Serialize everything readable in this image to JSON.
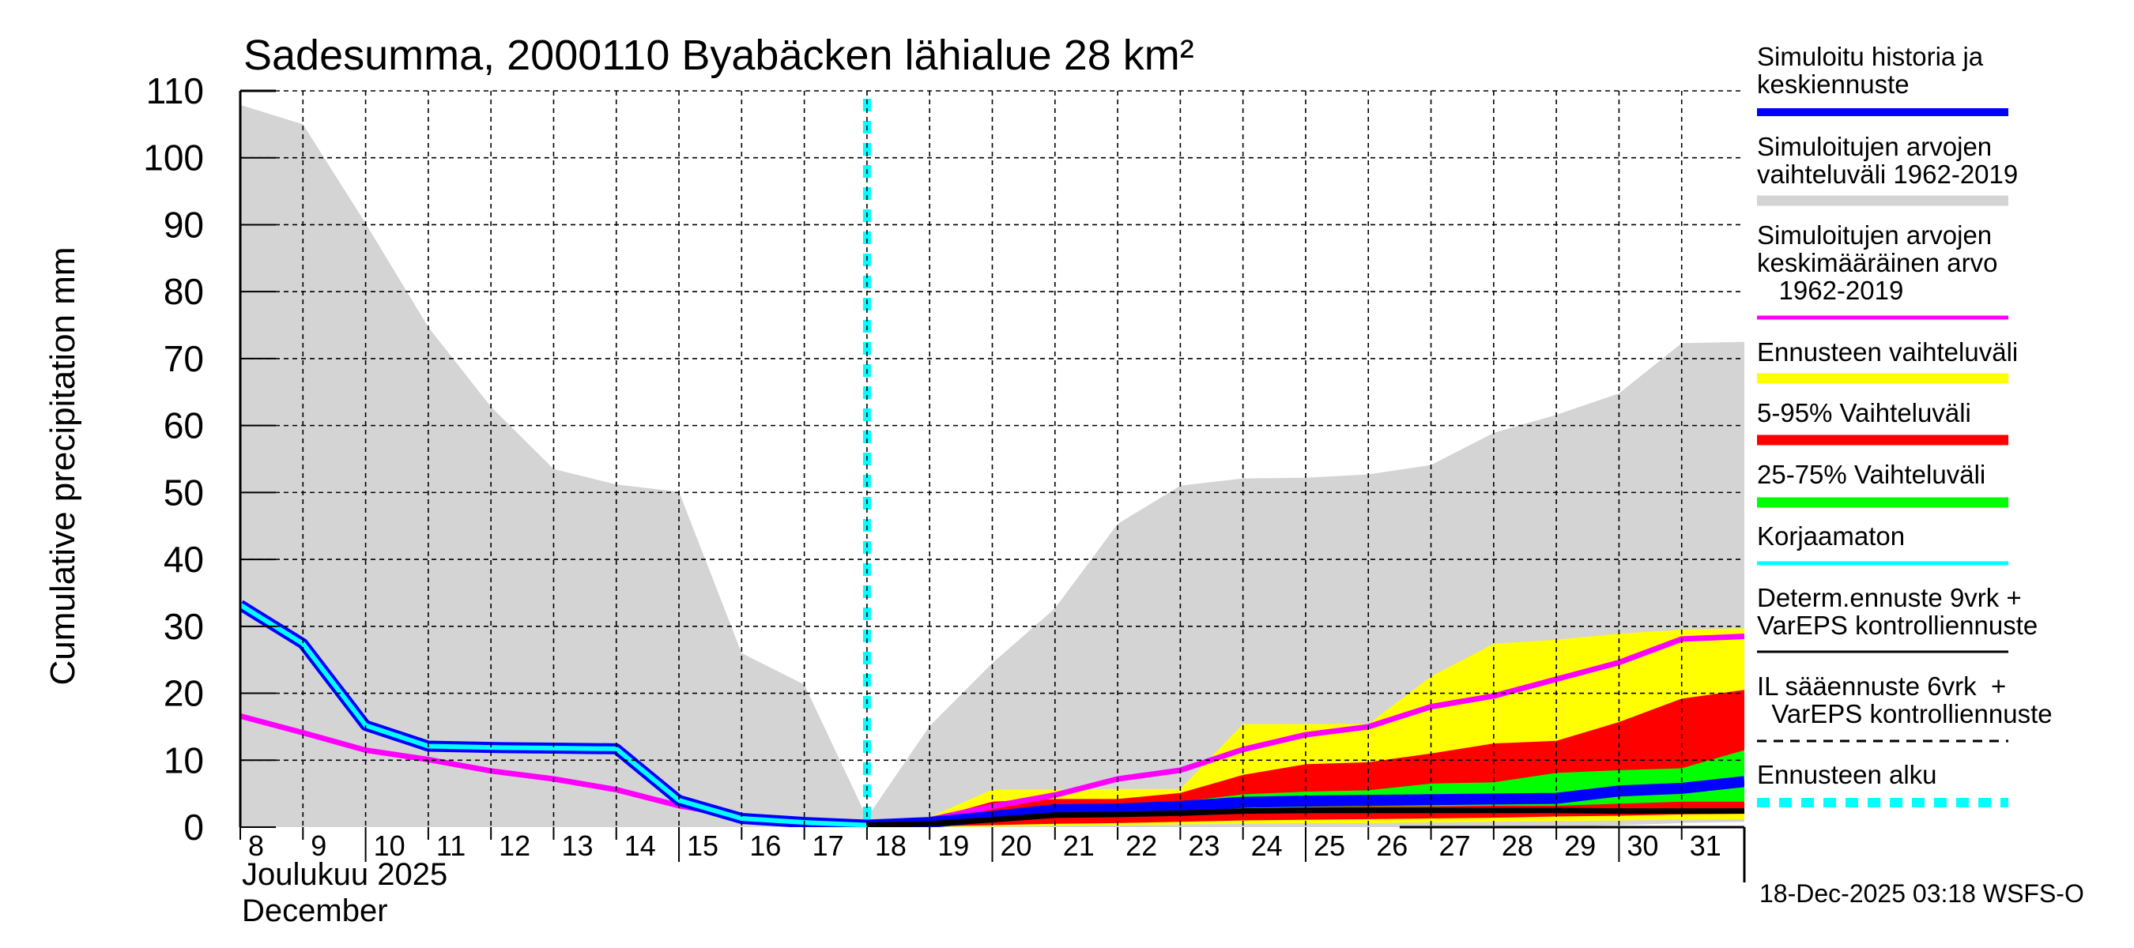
{
  "chart_data": {
    "type": "area",
    "title": "Sadesumma, 2000110 Byabäcken  lähialue 28 km²",
    "ylabel": "Cumulative precipitation   mm",
    "xlabel_lines": [
      "Joulukuu  2025",
      "December"
    ],
    "ylim": [
      0,
      110
    ],
    "yticks": [
      0,
      10,
      20,
      30,
      40,
      50,
      60,
      70,
      80,
      90,
      100,
      110
    ],
    "xlim_days": [
      8,
      32
    ],
    "xtick_days": [
      8,
      9,
      10,
      11,
      12,
      13,
      14,
      15,
      16,
      17,
      18,
      19,
      20,
      21,
      22,
      23,
      24,
      25,
      26,
      27,
      28,
      29,
      30,
      31
    ],
    "xtick_labels": [
      "8",
      "9",
      "10",
      "11",
      "12",
      "13",
      "14",
      "15",
      "16",
      "17",
      "18",
      "19",
      "20",
      "21",
      "22",
      "23",
      "24",
      "25",
      "26",
      "27",
      "28",
      "29",
      "30",
      "31"
    ],
    "grid": true,
    "forecast_start_day": 18,
    "timestamp": "18-Dec-2025 03:18 WSFS-O",
    "colors": {
      "history_range": "#d4d4d4",
      "history_mean": "#ff00ff",
      "simulated": "#0000ff",
      "uncorrected": "#00ffff",
      "forecast_range": "#ffff00",
      "range_5_95": "#ff0000",
      "range_25_75": "#00ff00",
      "deterministic": "#000000",
      "forecast_start": "#00ffff"
    },
    "series": {
      "history_range": {
        "name": "Simuloitujen arvojen vaihteluväli 1962-2019",
        "x": [
          8,
          9,
          10,
          11,
          12,
          13,
          14,
          15,
          16,
          17,
          18,
          19,
          20,
          21,
          22,
          23,
          24,
          25,
          26,
          27,
          28,
          29,
          30,
          31,
          32
        ],
        "upper": [
          107.9,
          105,
          90.2,
          74.7,
          62.8,
          53.5,
          51.2,
          50.1,
          26,
          21.3,
          1.4,
          15.1,
          24.5,
          32.7,
          45.3,
          51,
          52.1,
          52.2,
          52.7,
          54.1,
          58.9,
          61.6,
          64.8,
          72.3,
          72.5
        ],
        "lower": [
          0,
          0,
          0,
          0,
          0,
          0,
          0,
          0,
          0,
          0,
          0,
          0,
          0,
          0,
          0,
          0,
          0,
          0,
          0,
          0,
          0,
          0,
          0.3,
          0.6,
          0.8
        ]
      },
      "forecast_range": {
        "name": "Ennusteen vaihteluväli",
        "x": [
          18,
          19,
          20,
          21,
          22,
          23,
          24,
          25,
          26,
          27,
          28,
          29,
          30,
          31,
          32
        ],
        "upper": [
          0.2,
          1.5,
          5.6,
          5.6,
          5.7,
          5.7,
          15.4,
          15.4,
          15.4,
          22.5,
          27.4,
          28.0,
          28.9,
          29.5,
          29.7
        ],
        "lower": [
          0,
          0,
          0.1,
          0.2,
          0.3,
          0.4,
          0.5,
          0.6,
          0.6,
          0.7,
          0.8,
          0.9,
          1.0,
          1.1,
          1.2
        ]
      },
      "range_5_95": {
        "name": "5-95% Vaihteluväli",
        "x": [
          18,
          19,
          20,
          21,
          22,
          23,
          24,
          25,
          26,
          27,
          28,
          29,
          30,
          31,
          32
        ],
        "upper": [
          0.2,
          1.2,
          3.8,
          4.2,
          4.2,
          5.1,
          7.8,
          9.4,
          9.7,
          11.0,
          12.5,
          12.9,
          15.7,
          19.2,
          20.5
        ],
        "lower": [
          0,
          0.1,
          0.3,
          0.5,
          0.6,
          0.8,
          1.0,
          1.1,
          1.2,
          1.3,
          1.4,
          1.6,
          1.7,
          1.9,
          2.0
        ]
      },
      "range_25_75": {
        "name": "25-75% Vaihteluväli",
        "x": [
          18,
          19,
          20,
          21,
          22,
          23,
          24,
          25,
          26,
          27,
          28,
          29,
          30,
          31,
          32
        ],
        "upper": [
          0.1,
          0.9,
          2.3,
          3.2,
          3.3,
          3.8,
          4.9,
          5.3,
          5.5,
          6.5,
          6.7,
          8.1,
          8.5,
          8.8,
          11.5
        ],
        "lower": [
          0,
          0.4,
          1.2,
          1.8,
          2.0,
          2.3,
          2.8,
          3.0,
          3.1,
          3.1,
          3.2,
          3.2,
          3.5,
          3.8,
          3.8
        ]
      },
      "simulated": {
        "name": "Simuloitu historia ja keskiennuste",
        "x": [
          8,
          9,
          10,
          11,
          12,
          13,
          14,
          15,
          16,
          17,
          18,
          19,
          20,
          21,
          22,
          23,
          24,
          25,
          26,
          27,
          28,
          29,
          30,
          31,
          32
        ],
        "values": [
          33.2,
          27.4,
          15.2,
          12.1,
          11.9,
          11.8,
          11.7,
          4.0,
          1.3,
          0.7,
          0.3,
          0.7,
          1.6,
          2.6,
          2.7,
          3.1,
          3.7,
          3.9,
          4.0,
          4.1,
          4.2,
          4.3,
          5.4,
          5.8,
          6.8
        ]
      },
      "uncorrected": {
        "name": "Korjaamaton",
        "x": [
          8,
          9,
          10,
          11,
          12,
          13,
          14,
          15,
          16,
          17,
          18
        ],
        "values": [
          33.2,
          27.4,
          15.2,
          12.1,
          11.9,
          11.8,
          11.7,
          4.0,
          1.3,
          0.7,
          0.3
        ]
      },
      "history_mean": {
        "name": "Simuloitujen arvojen keskimääräinen arvo 1962-2019",
        "x": [
          8,
          9,
          10,
          11,
          12,
          13,
          14,
          15,
          16,
          17,
          18,
          19,
          20,
          21,
          22,
          23,
          24,
          25,
          26,
          27,
          28,
          29,
          30,
          31,
          32
        ],
        "values": [
          16.6,
          14.1,
          11.5,
          10.1,
          8.4,
          7.2,
          5.6,
          3.2,
          1.6,
          0.7,
          0.2,
          1.1,
          3.1,
          4.8,
          7.2,
          8.5,
          11.6,
          13.8,
          15.0,
          18.0,
          19.6,
          22.1,
          24.6,
          28.1,
          28.5
        ]
      },
      "deterministic": {
        "name": "Determ.ennuste 9vrk + VarEPS kontrolliennuste",
        "x": [
          18,
          19,
          20,
          21,
          22,
          23,
          24,
          25,
          26,
          27,
          28,
          29,
          30,
          31,
          32
        ],
        "values": [
          0.3,
          0.5,
          1.1,
          1.8,
          1.9,
          2.1,
          2.4,
          2.5,
          2.5,
          2.5,
          2.5,
          2.5,
          2.4,
          2.4,
          2.4
        ]
      }
    },
    "legend": [
      {
        "lines": [
          "Simuloitu historia ja",
          "keskiennuste"
        ],
        "color": "#0000ff",
        "style": "thick"
      },
      {
        "lines": [
          "Simuloitujen arvojen",
          "vaihteluväli 1962-2019"
        ],
        "color": "#d4d4d4",
        "style": "band"
      },
      {
        "lines": [
          "Simuloitujen arvojen",
          "keskimääräinen arvo",
          "   1962-2019"
        ],
        "color": "#ff00ff",
        "style": "line"
      },
      {
        "lines": [
          "Ennusteen vaihteluväli"
        ],
        "color": "#ffff00",
        "style": "band"
      },
      {
        "lines": [
          "5-95% Vaihteluväli"
        ],
        "color": "#ff0000",
        "style": "band"
      },
      {
        "lines": [
          "25-75% Vaihteluväli"
        ],
        "color": "#00ff00",
        "style": "band"
      },
      {
        "lines": [
          "Korjaamaton"
        ],
        "color": "#00ffff",
        "style": "line"
      },
      {
        "lines": [
          "Determ.ennuste 9vrk +",
          "VarEPS kontrolliennuste"
        ],
        "color": "#000000",
        "style": "thin"
      },
      {
        "lines": [
          "IL sääennuste 6vrk  +",
          "  VarEPS kontrolliennuste"
        ],
        "color": "#000000",
        "style": "dashed"
      },
      {
        "lines": [
          "Ennusteen alku"
        ],
        "color": "#00ffff",
        "style": "thickdashed"
      }
    ],
    "legend_placement": "right"
  }
}
